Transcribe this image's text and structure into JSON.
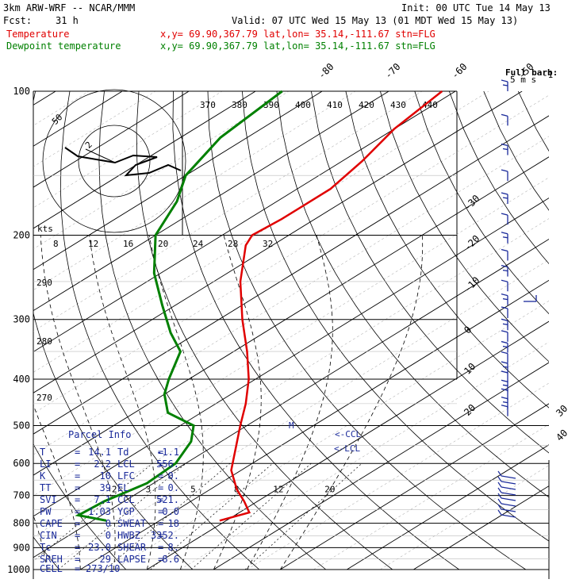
{
  "header": {
    "model": "3km ARW-WRF -- NCAR/MMM",
    "init": "Init: 00 UTC Tue 14 May 13",
    "fcst_label": "Fcst:",
    "fcst_value": "31 h",
    "valid": "Valid: 07 UTC Wed 15 May 13 (01 MDT Wed 15 May 13)",
    "temp_label": "Temperature",
    "temp_info": "x,y= 69.90,367.79   lat,lon= 35.14,-111.67   stn=FLG",
    "dew_label": "Dewpoint temperature",
    "dew_info": "x,y= 69.90,367.79   lat,lon= 35.14,-111.67   stn=FLG"
  },
  "colors": {
    "temperature": "#e00000",
    "dewpoint": "#008000",
    "parcel": "#1a2a9a",
    "grid": "#000000"
  },
  "chart_data": {
    "type": "line",
    "pressure_levels": [
      {
        "p": 100,
        "label": "100"
      },
      {
        "p": 200,
        "label": "200"
      },
      {
        "p": 300,
        "label": "300"
      },
      {
        "p": 400,
        "label": "400"
      },
      {
        "p": 500,
        "label": "500"
      },
      {
        "p": 600,
        "label": "600"
      },
      {
        "p": 700,
        "label": "700"
      },
      {
        "p": 800,
        "label": "800"
      },
      {
        "p": 900,
        "label": "900"
      },
      {
        "p": 1000,
        "label": "1000"
      }
    ],
    "isotherm_labels": [
      "-80",
      "-70",
      "-60",
      "-50",
      "-40",
      "-30",
      "-20",
      "-10",
      "0",
      "10",
      "20",
      "30",
      "40"
    ],
    "theta_e_labels": [
      "370",
      "380",
      "390",
      "400",
      "410",
      "420",
      "430",
      "440"
    ],
    "mixing_ratio_labels": [
      "2",
      "3",
      "5",
      "8",
      "12",
      "20"
    ],
    "hodograph": {
      "rings_label": "kts",
      "ring_speed_labels": [
        "8",
        "12",
        "16",
        "20",
        "24",
        "28",
        "32"
      ],
      "ring_theta_labels": [
        "290",
        "280",
        "270"
      ],
      "small_label": "50"
    },
    "series": [
      {
        "name": "Temperature",
        "points": [
          {
            "p": 790,
            "t": 9.0
          },
          {
            "p": 760,
            "t": 11.5
          },
          {
            "p": 720,
            "t": 8.0
          },
          {
            "p": 680,
            "t": 4.0
          },
          {
            "p": 620,
            "t": -1.5
          },
          {
            "p": 560,
            "t": -6.0
          },
          {
            "p": 500,
            "t": -11.0
          },
          {
            "p": 450,
            "t": -15.5
          },
          {
            "p": 400,
            "t": -21.0
          },
          {
            "p": 350,
            "t": -28.0
          },
          {
            "p": 300,
            "t": -36.5
          },
          {
            "p": 250,
            "t": -46.0
          },
          {
            "p": 210,
            "t": -54.0
          },
          {
            "p": 200,
            "t": -55.5
          },
          {
            "p": 185,
            "t": -55.0
          },
          {
            "p": 160,
            "t": -55.0
          },
          {
            "p": 140,
            "t": -57.0
          },
          {
            "p": 120,
            "t": -60.0
          },
          {
            "p": 100,
            "t": -62.0
          }
        ]
      },
      {
        "name": "Dewpoint temperature",
        "points": [
          {
            "p": 790,
            "t": -8.0
          },
          {
            "p": 770,
            "t": -13.5
          },
          {
            "p": 720,
            "t": -13.0
          },
          {
            "p": 660,
            "t": -11.0
          },
          {
            "p": 600,
            "t": -11.5
          },
          {
            "p": 540,
            "t": -14.5
          },
          {
            "p": 500,
            "t": -18.0
          },
          {
            "p": 470,
            "t": -25.0
          },
          {
            "p": 430,
            "t": -30.0
          },
          {
            "p": 400,
            "t": -33.0
          },
          {
            "p": 350,
            "t": -38.0
          },
          {
            "p": 320,
            "t": -44.0
          },
          {
            "p": 280,
            "t": -52.0
          },
          {
            "p": 240,
            "t": -61.0
          },
          {
            "p": 200,
            "t": -70.0
          },
          {
            "p": 170,
            "t": -75.0
          },
          {
            "p": 150,
            "t": -80.0
          },
          {
            "p": 125,
            "t": -84.0
          },
          {
            "p": 100,
            "t": -86.0
          }
        ]
      }
    ]
  },
  "markers": {
    "ccl": "<-CCL",
    "lcl": "<-LCL",
    "m": "M"
  },
  "wind_barbs": {
    "title": "Full barb:",
    "units": "5 m s"
  },
  "parcel_info": {
    "title": "Parcel Info",
    "rows": [
      {
        "k1": "T",
        "v1": "14.1",
        "k2": "Td",
        "v2": "-1.1"
      },
      {
        "k1": "LI",
        "v1": "2.2",
        "k2": "LCL",
        "v2": "556."
      },
      {
        "k1": "K",
        "v1": "10",
        "k2": "LFC",
        "v2": "0."
      },
      {
        "k1": "TT",
        "v1": "39",
        "k2": "EL",
        "v2": "0."
      },
      {
        "k1": "SVI",
        "v1": "7.1",
        "k2": "CCL",
        "v2": "521."
      },
      {
        "k1": "PW",
        "v1": "1.03",
        "k2": "YGP",
        "v2": "0.0"
      },
      {
        "k1": "CAPE",
        "v1": "0",
        "k2": "SWEAT",
        "v2": "18"
      },
      {
        "k1": "CIN",
        "v1": "0",
        "k2": "HWBZ",
        "v2": "3352."
      },
      {
        "k1": "Tc",
        "v1": "23.0",
        "k2": "SHEAR",
        "v2": "8."
      },
      {
        "k1": "SREH",
        "v1": "29",
        "k2": "LAPSE",
        "v2": "8.6"
      }
    ],
    "cell_label": "CELL",
    "cell_value": "273/10"
  }
}
